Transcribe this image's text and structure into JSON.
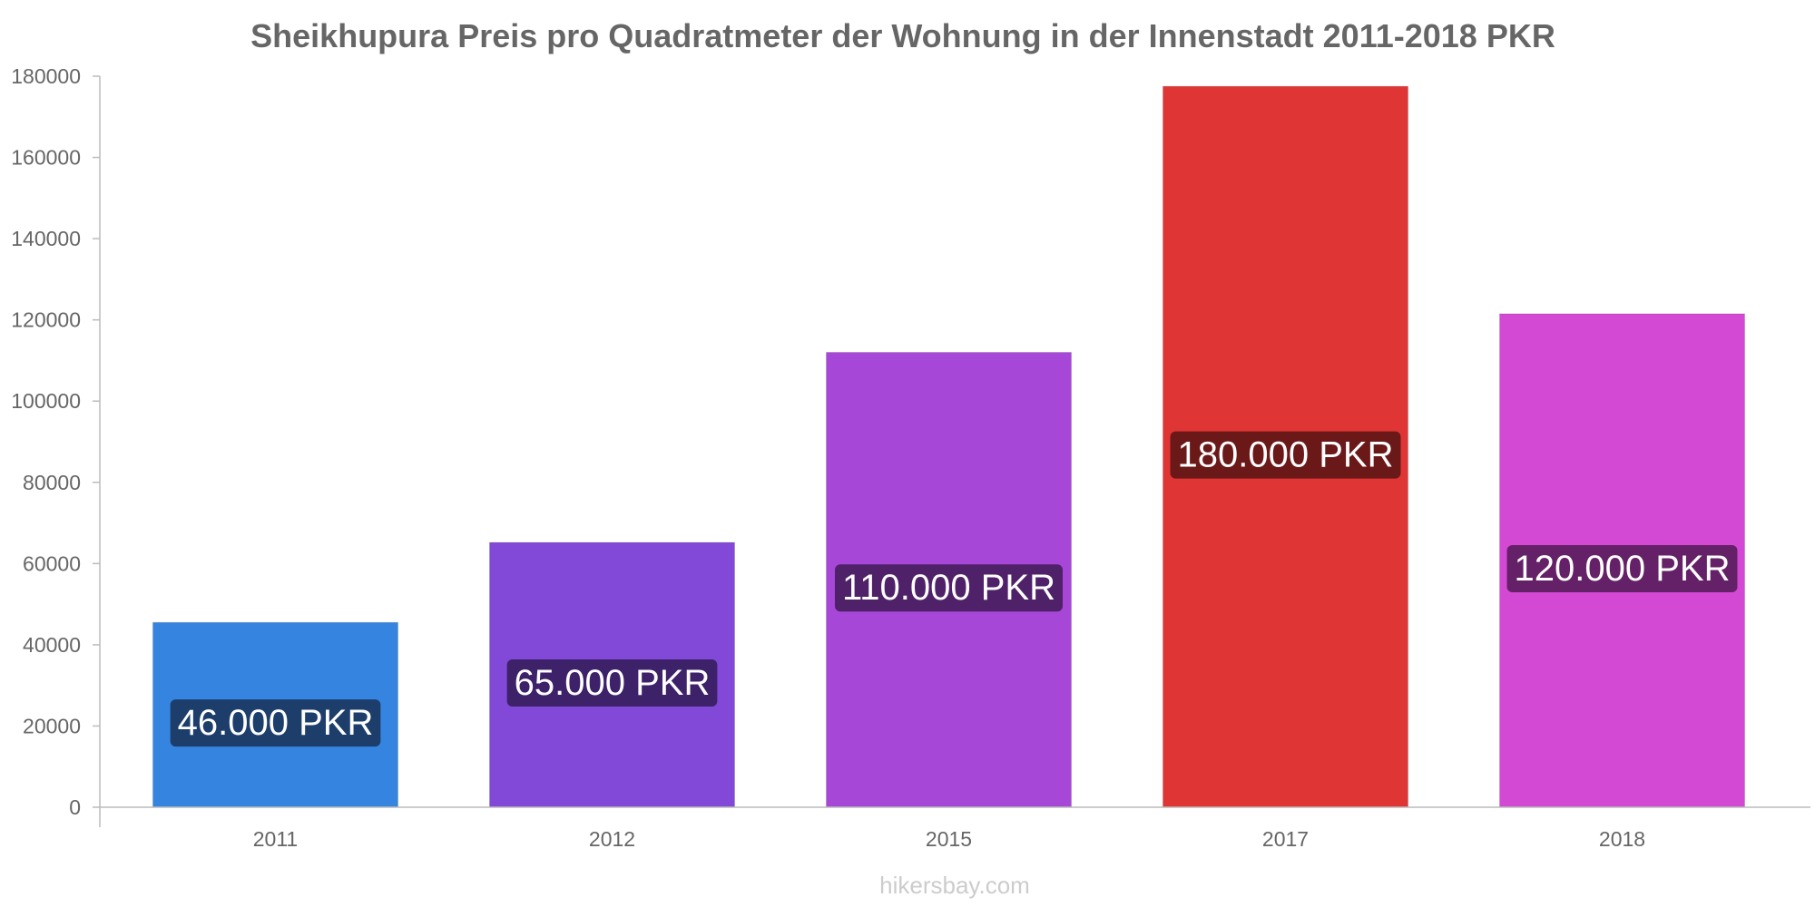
{
  "chart_data": {
    "type": "bar",
    "title": "Sheikhupura Preis pro Quadratmeter der Wohnung in der Innenstadt 2011-2018 PKR",
    "xlabel": "",
    "ylabel": "",
    "categories": [
      "2011",
      "2012",
      "2015",
      "2017",
      "2018"
    ],
    "values": [
      45500,
      65200,
      112000,
      177500,
      121500
    ],
    "data_labels": [
      "46.000 PKR",
      "65.000 PKR",
      "110.000 PKR",
      "180.000 PKR",
      "120.000 PKR"
    ],
    "ylim": [
      0,
      180000
    ],
    "yticks": [
      0,
      20000,
      40000,
      60000,
      80000,
      100000,
      120000,
      140000,
      160000,
      180000
    ],
    "grid": false,
    "legend": "none",
    "colors": {
      "bars": [
        "#3584e0",
        "#8249d8",
        "#a647d8",
        "#e03535",
        "#d449d4"
      ],
      "label_backgrounds": [
        "#1d3e6b",
        "#3d2169",
        "#4f2169",
        "#6b1818",
        "#652167"
      ],
      "axis": "#bbbbbb",
      "text": "#666666"
    }
  },
  "watermark": "hikersbay.com"
}
